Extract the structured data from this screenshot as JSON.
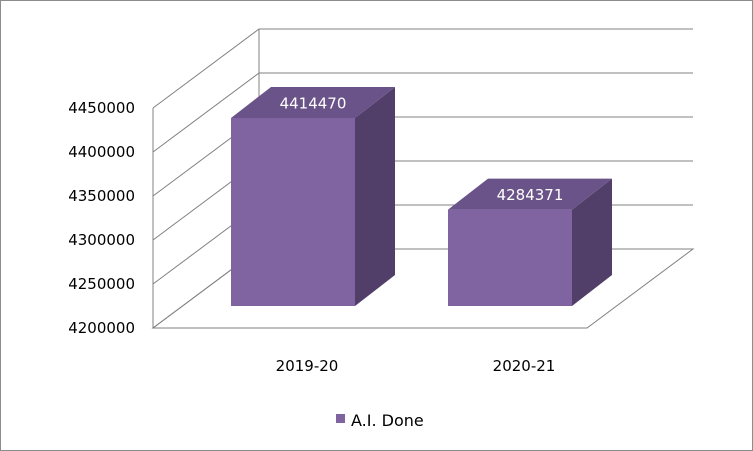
{
  "chart_data": {
    "type": "bar",
    "style": "3d-column",
    "categories": [
      "2019-20",
      "2020-21"
    ],
    "series": [
      {
        "name": "A.I. Done",
        "values": [
          4414470,
          4284371
        ]
      }
    ],
    "data_labels": [
      "4414470",
      "4284371"
    ],
    "y_ticks": [
      "4200000",
      "4250000",
      "4300000",
      "4350000",
      "4400000",
      "4450000"
    ],
    "ylim": [
      4200000,
      4450000
    ],
    "grid": true,
    "legend": "bottom",
    "colors": {
      "bar_front": "#8064A2",
      "bar_side": "#513F69",
      "bar_top": "#6A5388",
      "grid": "#808080"
    }
  }
}
